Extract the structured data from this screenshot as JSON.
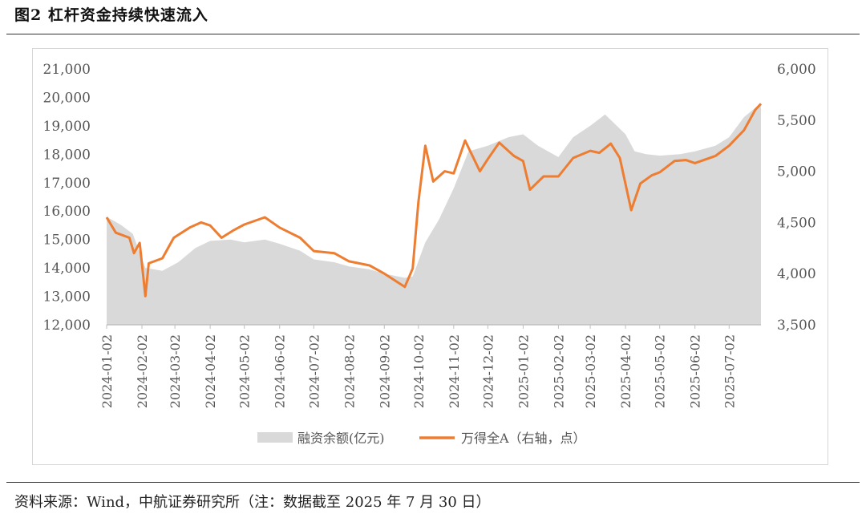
{
  "figure": {
    "title": "图2 杠杆资金持续快速流入",
    "source": "资料来源：Wind，中航证券研究所（注：数据截至 2025 年 7 月 30 日）"
  },
  "colors": {
    "area": "#d9d9d9",
    "line": "#ed7d31",
    "axis": "#bfbfbf",
    "text": "#555555"
  },
  "chart_data": {
    "type": "area+line",
    "grid": false,
    "legend_position": "bottom",
    "x_tick_labels": [
      "2024-01-02",
      "2024-02-02",
      "2024-03-02",
      "2024-04-02",
      "2024-05-02",
      "2024-06-02",
      "2024-07-02",
      "2024-08-02",
      "2024-09-02",
      "2024-10-02",
      "2024-11-02",
      "2024-12-02",
      "2025-01-02",
      "2025-02-02",
      "2025-03-02",
      "2025-04-02",
      "2025-05-02",
      "2025-06-02",
      "2025-07-02"
    ],
    "x_range": [
      "2024-01-02",
      "2025-07-30"
    ],
    "y_left": {
      "range": [
        12000,
        21000
      ],
      "ticks": [
        "12,000",
        "13,000",
        "14,000",
        "15,000",
        "16,000",
        "17,000",
        "18,000",
        "19,000",
        "20,000",
        "21,000"
      ]
    },
    "y_right": {
      "range": [
        3500,
        6000
      ],
      "ticks": [
        "3,500",
        "4,000",
        "4,500",
        "5,000",
        "5,500",
        "6,000"
      ]
    },
    "series": [
      {
        "name": "融资余额(亿元)",
        "type": "area",
        "axis": "left",
        "points": [
          [
            "2024-01-02",
            15800
          ],
          [
            "2024-01-15",
            15500
          ],
          [
            "2024-01-25",
            15200
          ],
          [
            "2024-02-05",
            14000
          ],
          [
            "2024-02-20",
            13900
          ],
          [
            "2024-03-05",
            14200
          ],
          [
            "2024-03-20",
            14700
          ],
          [
            "2024-04-02",
            14950
          ],
          [
            "2024-04-20",
            15000
          ],
          [
            "2024-05-02",
            14900
          ],
          [
            "2024-05-20",
            15000
          ],
          [
            "2024-06-02",
            14850
          ],
          [
            "2024-06-20",
            14600
          ],
          [
            "2024-07-02",
            14300
          ],
          [
            "2024-07-20",
            14200
          ],
          [
            "2024-08-02",
            14050
          ],
          [
            "2024-08-20",
            13950
          ],
          [
            "2024-09-02",
            13800
          ],
          [
            "2024-09-20",
            13650
          ],
          [
            "2024-09-27",
            13700
          ],
          [
            "2024-10-08",
            14900
          ],
          [
            "2024-10-20",
            15700
          ],
          [
            "2024-11-02",
            16800
          ],
          [
            "2024-11-15",
            18100
          ],
          [
            "2024-12-02",
            18300
          ],
          [
            "2024-12-20",
            18600
          ],
          [
            "2025-01-02",
            18700
          ],
          [
            "2025-01-15",
            18300
          ],
          [
            "2025-02-02",
            17900
          ],
          [
            "2025-02-15",
            18600
          ],
          [
            "2025-03-02",
            19000
          ],
          [
            "2025-03-15",
            19400
          ],
          [
            "2025-04-02",
            18700
          ],
          [
            "2025-04-10",
            18100
          ],
          [
            "2025-04-20",
            18000
          ],
          [
            "2025-05-02",
            17950
          ],
          [
            "2025-05-20",
            18000
          ],
          [
            "2025-06-02",
            18100
          ],
          [
            "2025-06-20",
            18300
          ],
          [
            "2025-07-02",
            18600
          ],
          [
            "2025-07-15",
            19300
          ],
          [
            "2025-07-30",
            19800
          ]
        ]
      },
      {
        "name": "万得全A（右轴，点）",
        "type": "line",
        "axis": "right",
        "points": [
          [
            "2024-01-02",
            4550
          ],
          [
            "2024-01-10",
            4400
          ],
          [
            "2024-01-22",
            4350
          ],
          [
            "2024-01-26",
            4200
          ],
          [
            "2024-01-31",
            4300
          ],
          [
            "2024-02-05",
            3780
          ],
          [
            "2024-02-08",
            4100
          ],
          [
            "2024-02-20",
            4150
          ],
          [
            "2024-03-01",
            4350
          ],
          [
            "2024-03-15",
            4450
          ],
          [
            "2024-03-25",
            4500
          ],
          [
            "2024-04-02",
            4470
          ],
          [
            "2024-04-12",
            4350
          ],
          [
            "2024-04-22",
            4420
          ],
          [
            "2024-05-02",
            4480
          ],
          [
            "2024-05-20",
            4550
          ],
          [
            "2024-06-02",
            4450
          ],
          [
            "2024-06-20",
            4350
          ],
          [
            "2024-07-02",
            4220
          ],
          [
            "2024-07-20",
            4200
          ],
          [
            "2024-08-02",
            4120
          ],
          [
            "2024-08-20",
            4080
          ],
          [
            "2024-09-02",
            4000
          ],
          [
            "2024-09-20",
            3870
          ],
          [
            "2024-09-27",
            4050
          ],
          [
            "2024-10-02",
            4700
          ],
          [
            "2024-10-08",
            5250
          ],
          [
            "2024-10-15",
            4900
          ],
          [
            "2024-10-25",
            5000
          ],
          [
            "2024-11-02",
            4980
          ],
          [
            "2024-11-12",
            5300
          ],
          [
            "2024-11-25",
            5000
          ],
          [
            "2024-12-02",
            5120
          ],
          [
            "2024-12-12",
            5280
          ],
          [
            "2024-12-25",
            5150
          ],
          [
            "2025-01-02",
            5100
          ],
          [
            "2025-01-08",
            4820
          ],
          [
            "2025-01-20",
            4950
          ],
          [
            "2025-02-02",
            4950
          ],
          [
            "2025-02-15",
            5130
          ],
          [
            "2025-03-02",
            5200
          ],
          [
            "2025-03-10",
            5180
          ],
          [
            "2025-03-20",
            5270
          ],
          [
            "2025-03-28",
            5130
          ],
          [
            "2025-04-07",
            4620
          ],
          [
            "2025-04-15",
            4880
          ],
          [
            "2025-04-25",
            4960
          ],
          [
            "2025-05-02",
            4990
          ],
          [
            "2025-05-15",
            5100
          ],
          [
            "2025-05-25",
            5110
          ],
          [
            "2025-06-02",
            5080
          ],
          [
            "2025-06-20",
            5150
          ],
          [
            "2025-07-02",
            5250
          ],
          [
            "2025-07-15",
            5400
          ],
          [
            "2025-07-25",
            5600
          ],
          [
            "2025-07-30",
            5660
          ]
        ]
      }
    ]
  }
}
